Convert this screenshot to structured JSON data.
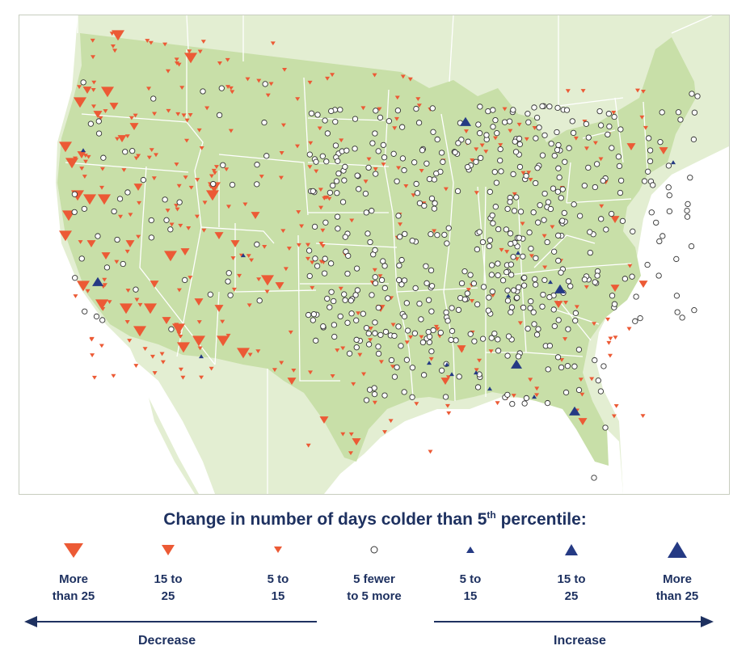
{
  "legend": {
    "title": "Change in number of days colder than 5",
    "title_sup": "th",
    "title_suffix": " percentile:",
    "items": [
      {
        "label": "More\nthan 25",
        "symbol": "triangle-down-large-icon",
        "color": "#ec5a35"
      },
      {
        "label": "15 to\n25",
        "symbol": "triangle-down-medium-icon",
        "color": "#ec5a35"
      },
      {
        "label": "5 to\n15",
        "symbol": "triangle-down-small-icon",
        "color": "#ec5a35"
      },
      {
        "label": "5 fewer\nto 5 more",
        "symbol": "circle-icon",
        "color": "#ffffff"
      },
      {
        "label": "5 to\n15",
        "symbol": "triangle-up-small-icon",
        "color": "#253a84"
      },
      {
        "label": "15 to\n25",
        "symbol": "triangle-up-medium-icon",
        "color": "#253a84"
      },
      {
        "label": "More\nthan 25",
        "symbol": "triangle-up-large-icon",
        "color": "#253a84"
      }
    ],
    "decrease_label": "Decrease",
    "increase_label": "Increase"
  },
  "colors": {
    "land_us": "#c8dfa8",
    "land_other": "#e3eed2",
    "water": "#ffffff",
    "borders": "#ffffff",
    "decrease": "#ec5a35",
    "increase": "#253a84",
    "text": "#1e3160"
  }
}
